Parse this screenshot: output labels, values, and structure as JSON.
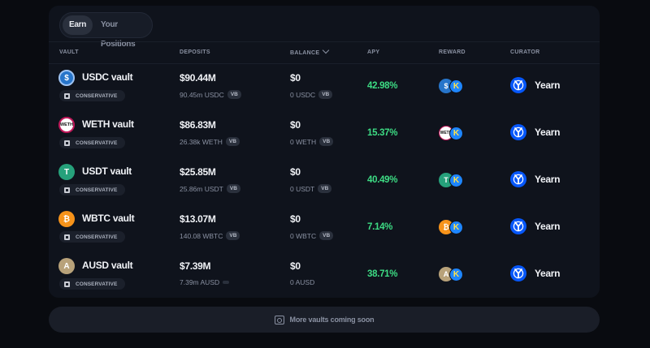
{
  "tabs": [
    {
      "label": "Earn"
    },
    {
      "label": "Your Positions"
    }
  ],
  "columns": {
    "vault": "VAULT",
    "deposits": "DEPOSITS",
    "balance": "BALANCE",
    "apy": "APY",
    "reward": "REWARD",
    "curator": "CURATOR"
  },
  "vaults": [
    {
      "name": "USDC vault",
      "icon_name": "usdc-icon",
      "icon_glyph": "$",
      "icon_color": "#2775ca",
      "risk": "CONSERVATIVE",
      "deposits": "$90.44M",
      "deposits_token": "90.45m USDC",
      "balance": "$0",
      "balance_token": "0 USDC",
      "vb": "VB",
      "apy": "42.98%",
      "reward_glyph": "$",
      "reward_k": "K",
      "curator": "Yearn"
    },
    {
      "name": "WETH vault",
      "icon_name": "weth-icon",
      "icon_glyph": "WETH",
      "icon_color": "#ffffff",
      "risk": "CONSERVATIVE",
      "deposits": "$86.83M",
      "deposits_token": "26.38k WETH",
      "balance": "$0",
      "balance_token": "0 WETH",
      "vb": "VB",
      "apy": "15.37%",
      "reward_glyph": "WETH",
      "reward_k": "K",
      "curator": "Yearn"
    },
    {
      "name": "USDT vault",
      "icon_name": "usdt-icon",
      "icon_glyph": "T",
      "icon_color": "#26a17b",
      "risk": "CONSERVATIVE",
      "deposits": "$25.85M",
      "deposits_token": "25.86m USDT",
      "balance": "$0",
      "balance_token": "0 USDT",
      "vb": "VB",
      "apy": "40.49%",
      "reward_glyph": "T",
      "reward_k": "K",
      "curator": "Yearn"
    },
    {
      "name": "WBTC vault",
      "icon_name": "wbtc-icon",
      "icon_glyph": "₿",
      "icon_color": "#f7931a",
      "risk": "CONSERVATIVE",
      "deposits": "$13.07M",
      "deposits_token": "140.08 WBTC",
      "balance": "$0",
      "balance_token": "0 WBTC",
      "vb": "VB",
      "apy": "7.14%",
      "reward_glyph": "₿",
      "reward_k": "K",
      "curator": "Yearn"
    },
    {
      "name": "AUSD vault",
      "icon_name": "ausd-icon",
      "icon_glyph": "A",
      "icon_color": "#b8a27a",
      "risk": "CONSERVATIVE",
      "deposits": "$7.39M",
      "deposits_token": "7.39m AUSD",
      "balance": "$0",
      "balance_token": "0 AUSD",
      "vb": "",
      "apy": "38.71%",
      "reward_glyph": "A",
      "reward_k": "K",
      "curator": "Yearn"
    }
  ],
  "footer": {
    "label": "More vaults coming soon"
  }
}
